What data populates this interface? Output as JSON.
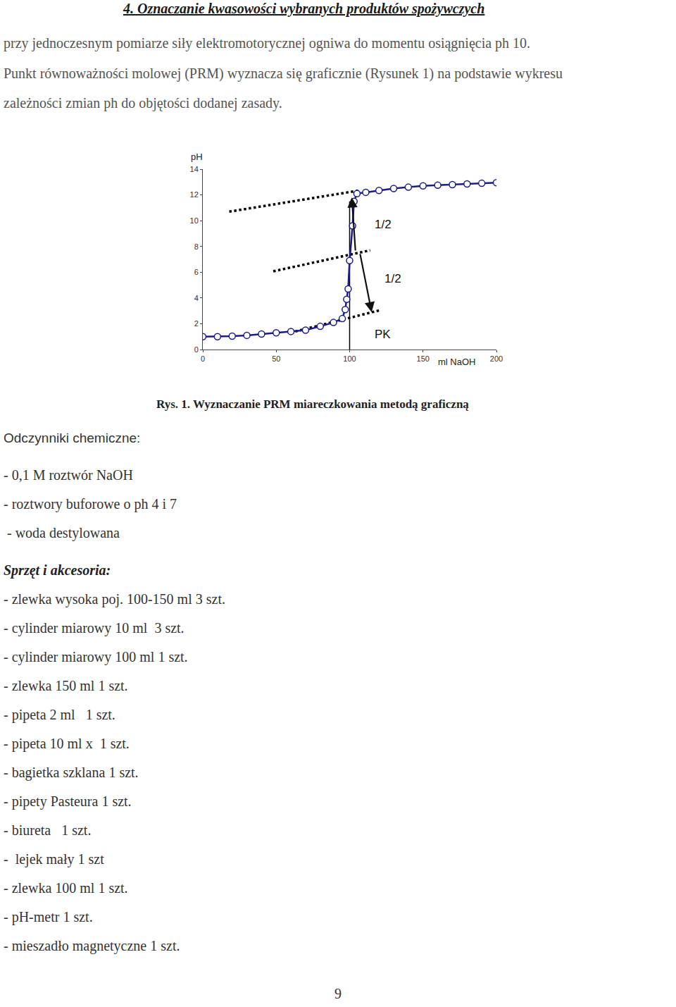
{
  "document": {
    "heading": "4. Oznaczanie kwasowości wybranych produktów spożywczych",
    "paragraph": [
      "przy jednoczesnym pomiarze siły elektromotorycznej ogniwa do momentu osiągnięcia ph 10.",
      "Punkt równoważności molowej (PRM) wyznacza się graficznie (Rysunek 1) na podstawie wykresu",
      "zależności zmian ph do objętości dodanej zasady."
    ],
    "figure_caption": "Rys. 1. Wyznaczanie PRM miareczkowania metodą graficzną",
    "reagents": {
      "title": "Odczynniki chemiczne:",
      "items": [
        "- 0,1 M roztwór NaOH",
        "- roztwory buforowe o ph 4 i 7",
        " - woda destylowana"
      ]
    },
    "equipment": {
      "title": "Sprzęt i akcesoria:",
      "items": [
        "- zlewka wysoka poj. 100-150 ml 3 szt.",
        "- cylinder miarowy 10 ml  3 szt.",
        "- cylinder miarowy 100 ml 1 szt.",
        "- zlewka 150 ml 1 szt.",
        "- pipeta 2 ml   1 szt.",
        "- pipeta 10 ml x  1 szt.",
        "- bagietka szklana 1 szt.",
        "- pipety Pasteura 1 szt.",
        "- biureta   1 szt.",
        "-  lejek mały 1 szt",
        "- zlewka 100 ml 1 szt.",
        "- pH-metr 1 szt.",
        "- mieszadło magnetyczne 1 szt."
      ]
    },
    "page_number": "9"
  },
  "chart_data": {
    "type": "line",
    "x_label": "ml NaOH",
    "y_label": "pH",
    "x": [
      0,
      10,
      20,
      30,
      40,
      50,
      60,
      70,
      80,
      89,
      95,
      97,
      98,
      99,
      100,
      102,
      103,
      105,
      111,
      120,
      130,
      140,
      150,
      160,
      170,
      180,
      190,
      200
    ],
    "values": [
      1.0,
      1.0,
      1.04,
      1.1,
      1.2,
      1.3,
      1.4,
      1.5,
      1.8,
      2.1,
      2.4,
      3.1,
      3.9,
      4.7,
      6.9,
      9.6,
      11.5,
      12.1,
      12.2,
      12.35,
      12.5,
      12.6,
      12.7,
      12.75,
      12.8,
      12.85,
      12.9,
      12.95
    ],
    "color": "#1c1c8a",
    "marker": "circle",
    "xlim": [
      0,
      200
    ],
    "xticks": [
      0,
      50,
      100,
      150,
      200
    ],
    "ylim": [
      0,
      14
    ],
    "yticks": [
      0,
      2,
      4,
      6,
      8,
      10,
      12,
      14
    ],
    "grid": false,
    "guides": [
      {
        "x": [
          18,
          107
        ],
        "y": [
          10.7,
          12.35
        ],
        "line_style": "dotted",
        "color": "#000000"
      },
      {
        "x": [
          48,
          114
        ],
        "y": [
          6.07,
          7.7
        ],
        "line_style": "dotted",
        "color": "#000000"
      },
      {
        "x": [
          63,
          121
        ],
        "y": [
          1.4,
          3.06
        ],
        "line_style": "dotted",
        "color": "#000000"
      },
      {
        "x": [
          100,
          100
        ],
        "y": [
          0,
          11.5
        ],
        "line_style": "solid",
        "color": "#000000"
      }
    ],
    "arrows": [
      {
        "from": [
          104,
          7.6
        ],
        "to": [
          101.5,
          11.8
        ]
      },
      {
        "from": [
          107,
          7.5
        ],
        "to": [
          115,
          2.9
        ]
      }
    ],
    "annotations": [
      {
        "text": "1/2",
        "x": 116,
        "y": 9.7
      },
      {
        "text": "1/2",
        "x": 123,
        "y": 5.5
      },
      {
        "text": "PK",
        "x": 116,
        "y": 1.2
      }
    ]
  }
}
